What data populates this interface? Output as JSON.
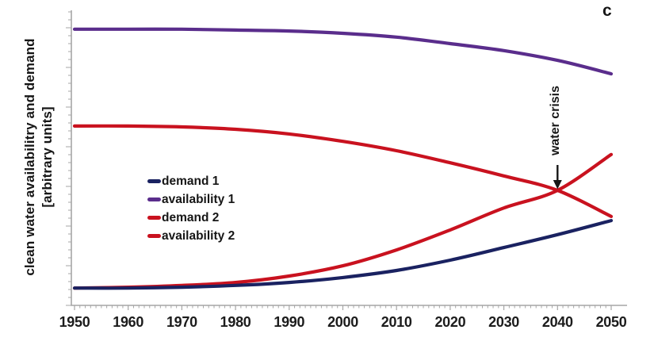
{
  "panel_label": "c",
  "y_axis": {
    "label_line1": "clean water availabilitry and demand",
    "label_line2": "[arbitrary units]"
  },
  "annotation": {
    "text": "water crisis",
    "arrow_icon": "↓",
    "year": 2040
  },
  "colors": {
    "demand1": "#1a2261",
    "availability1": "#5a2d8c",
    "demand2": "#c9121f",
    "availability2": "#c9121f",
    "axis": "#a6a6a6",
    "text": "#161616"
  },
  "chart_data": {
    "type": "line",
    "title": "",
    "xlabel": "",
    "ylabel": "clean water availabilitry and demand [arbitrary units]",
    "x": [
      1950,
      1960,
      1970,
      1980,
      1990,
      2000,
      2010,
      2020,
      2030,
      2040,
      2050
    ],
    "x_tick_labels": [
      "1950",
      "1960",
      "1970",
      "1980",
      "1990",
      "2000",
      "2010",
      "2020",
      "2030",
      "2040",
      "2050"
    ],
    "xlim": [
      1950,
      2050
    ],
    "ylim": [
      0,
      100
    ],
    "grid": false,
    "legend_position": "center-left",
    "series": [
      {
        "name": "demand 1",
        "color_key": "demand1",
        "values": [
          5.9,
          5.9,
          6.2,
          6.8,
          7.8,
          9.5,
          11.9,
          15.4,
          19.7,
          24.1,
          28.9
        ]
      },
      {
        "name": "availability 1",
        "color_key": "availability1",
        "values": [
          94.1,
          94.1,
          94.1,
          93.8,
          93.5,
          92.7,
          91.4,
          89.2,
          86.8,
          83.5,
          78.9
        ]
      },
      {
        "name": "demand 2",
        "color_key": "demand2",
        "values": [
          5.9,
          6.2,
          6.8,
          7.8,
          10.0,
          13.5,
          18.9,
          25.7,
          33.2,
          39.2,
          51.4
        ]
      },
      {
        "name": "availability 2",
        "color_key": "availability2",
        "values": [
          61.1,
          61.1,
          60.8,
          60.0,
          58.4,
          55.9,
          52.7,
          48.6,
          44.1,
          39.2,
          30.3
        ]
      }
    ],
    "crossing_annotation": {
      "label": "water crisis",
      "x": 2040,
      "y": 39.2
    }
  }
}
